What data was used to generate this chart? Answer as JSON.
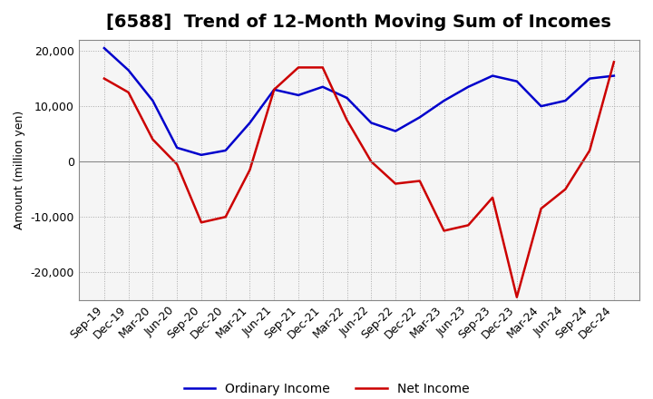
{
  "title": "[6588]  Trend of 12-Month Moving Sum of Incomes",
  "ylabel": "Amount (million yen)",
  "ylim": [
    -25000,
    22000
  ],
  "yticks": [
    -20000,
    -10000,
    0,
    10000,
    20000
  ],
  "x_labels": [
    "Sep-19",
    "Dec-19",
    "Mar-20",
    "Jun-20",
    "Sep-20",
    "Dec-20",
    "Mar-21",
    "Jun-21",
    "Sep-21",
    "Dec-21",
    "Mar-22",
    "Jun-22",
    "Sep-22",
    "Dec-22",
    "Mar-23",
    "Jun-23",
    "Sep-23",
    "Dec-23",
    "Mar-24",
    "Jun-24",
    "Sep-24",
    "Dec-24"
  ],
  "ordinary_income": [
    20500,
    16500,
    11000,
    2500,
    1200,
    2000,
    7000,
    13000,
    12000,
    13500,
    11500,
    7000,
    5500,
    8000,
    11000,
    13500,
    15500,
    14500,
    10000,
    11000,
    15000,
    15500
  ],
  "net_income": [
    15000,
    12500,
    4000,
    -500,
    -11000,
    -10000,
    -1500,
    13000,
    17000,
    17000,
    7500,
    0,
    -4000,
    -3500,
    -12500,
    -11500,
    -6500,
    -24500,
    -8500,
    -5000,
    2000,
    18000
  ],
  "ordinary_color": "#0000cc",
  "net_color": "#cc0000",
  "grid_color": "#aaaaaa",
  "background_color": "#ffffff",
  "plot_bg_color": "#f5f5f5",
  "title_fontsize": 14,
  "axis_fontsize": 9,
  "legend_fontsize": 10
}
